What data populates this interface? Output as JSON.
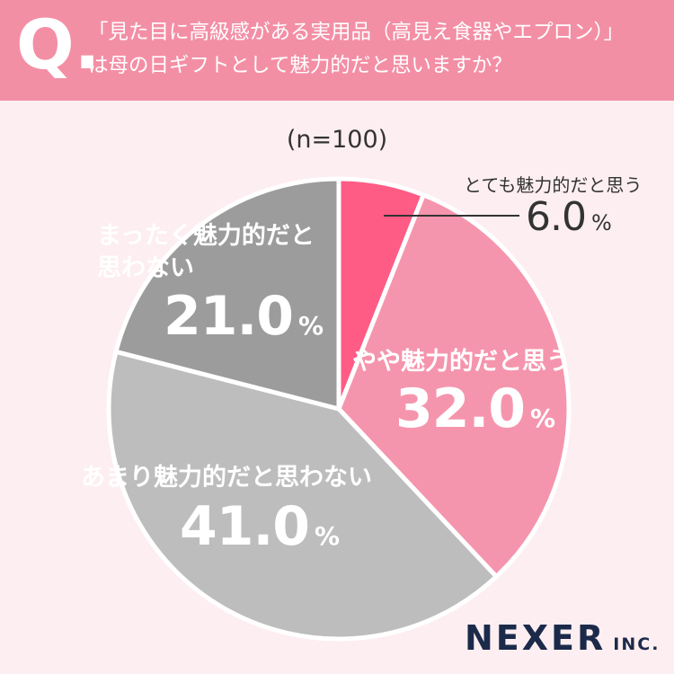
{
  "header": {
    "q_mark": "Q.",
    "question_line1": "「見た目に高級感がある実用品（高見え食器やエプロン）」",
    "question_line2": "は母の日ギフトとして魅力的だと思いますか？"
  },
  "n_label": "(n=100)",
  "chart_data": {
    "type": "pie",
    "slices": [
      {
        "label": "とても魅力的だと思う",
        "value": 6.0,
        "display": "6.0",
        "color": "#ff5c85"
      },
      {
        "label": "やや魅力的だと思う",
        "value": 32.0,
        "display": "32.0",
        "color": "#f595ad"
      },
      {
        "label": "あまり魅力的だと思わない",
        "value": 41.0,
        "display": "41.0",
        "color": "#bdbdbd"
      },
      {
        "label": "まったく魅力的だと思わない",
        "value": 21.0,
        "display": "21.0",
        "color": "#9c9c9c"
      }
    ],
    "percent_sign": "%"
  },
  "labels": {
    "very_line1": "とても魅力的だと思う",
    "somewhat_line1": "やや魅力的だと思う",
    "not_much_line1": "あまり魅力的だと思わない",
    "not_at_all_line1": "まったく魅力的だと",
    "not_at_all_line2": "思わない"
  },
  "logo": {
    "name": "NEXER",
    "suffix": "INC."
  }
}
